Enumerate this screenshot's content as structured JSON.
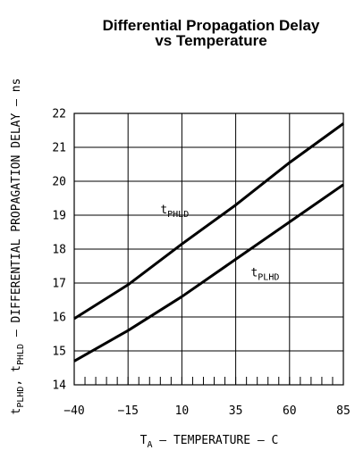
{
  "chart_data": {
    "type": "line",
    "title_line1": "Differential Propagation Delay",
    "title_line2": "vs Temperature",
    "xlabel_main": "T",
    "xlabel_sub": "A",
    "xlabel_rest": " – TEMPERATURE – C",
    "ylabel_t1": "t",
    "ylabel_s1": "PLHD",
    "ylabel_sep": ", ",
    "ylabel_t2": "t",
    "ylabel_s2": "PHLD",
    "ylabel_rest": " – DIFFERENTIAL PROPAGATION DELAY – ns",
    "xlim": [
      -40,
      85
    ],
    "ylim": [
      14,
      22
    ],
    "xticks": [
      -40,
      -15,
      10,
      35,
      60,
      85
    ],
    "xtick_labels": [
      "−40",
      "−15",
      "10",
      "35",
      "60",
      "85"
    ],
    "x_minor_step": 5,
    "yticks": [
      14,
      15,
      16,
      17,
      18,
      19,
      20,
      21,
      22
    ],
    "ytick_labels": [
      "14",
      "15",
      "16",
      "17",
      "18",
      "19",
      "20",
      "21",
      "22"
    ],
    "grid": true,
    "series": [
      {
        "label_t": "t",
        "label_s": "PHLD",
        "label_at": [
          0,
          19.05
        ],
        "points": [
          [
            -40,
            15.95
          ],
          [
            -15,
            16.95
          ],
          [
            10,
            18.15
          ],
          [
            35,
            19.3
          ],
          [
            60,
            20.55
          ],
          [
            85,
            21.7
          ]
        ]
      },
      {
        "label_t": "t",
        "label_s": "PLHD",
        "label_at": [
          42,
          17.2
        ],
        "points": [
          [
            -40,
            14.7
          ],
          [
            -15,
            15.6
          ],
          [
            10,
            16.6
          ],
          [
            35,
            17.7
          ],
          [
            60,
            18.8
          ],
          [
            85,
            19.9
          ]
        ]
      }
    ]
  }
}
